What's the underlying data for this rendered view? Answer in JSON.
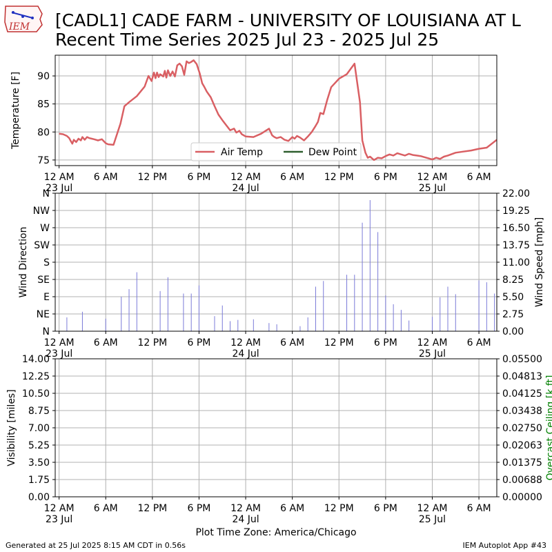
{
  "header": {
    "title_line1": "[CADL1] CADE FARM - UNIVERSITY OF LOUISIANA AT L",
    "title_line2": "Recent Time Series 2025 Jul 23 - 2025 Jul 25",
    "logo_text": "IEM"
  },
  "footer": {
    "generated": "Generated at 25 Jul 2025 8:15 AM CDT in 0.56s",
    "app": "IEM Autoplot App #43"
  },
  "colors": {
    "air_temp": "#d95f63",
    "dew_point": "#2e5e2e",
    "wind_bar": "#7a7ad8",
    "grid": "#b0b0b0",
    "ceiling_label": "#008000"
  },
  "chart_data": [
    {
      "id": "temperature",
      "type": "line",
      "xlabel": "",
      "ylabel": "Temperature [F]",
      "ylim": [
        74,
        93.7
      ],
      "yticks": [
        75,
        80,
        85,
        90
      ],
      "xlim_hours": [
        -0.5,
        56.3
      ],
      "grid": true,
      "legend_placement": "lower center",
      "legend": [
        "Air Temp",
        "Dew Point"
      ],
      "series": [
        {
          "name": "Air Temp",
          "x_hours": [
            0,
            0.5,
            1,
            1.3,
            1.5,
            1.7,
            1.9,
            2.2,
            2.5,
            2.8,
            3,
            3.3,
            3.6,
            3.9,
            4.2,
            4.5,
            5,
            5.5,
            6,
            6.3,
            7,
            7.9,
            8.4,
            9,
            10,
            11,
            11.5,
            11.9,
            12.2,
            12.4,
            12.6,
            12.8,
            13,
            13.2,
            13.4,
            13.6,
            13.8,
            14,
            14.3,
            14.6,
            14.9,
            15.2,
            15.5,
            15.8,
            16.1,
            16.4,
            16.7,
            17,
            17.3,
            17.7,
            18.1,
            18.4,
            18.7,
            19,
            19.5,
            20,
            20.5,
            21,
            22,
            22.5,
            22.8,
            23.2,
            23.5,
            24,
            25,
            26,
            27,
            27.4,
            27.7,
            28,
            28.5,
            29,
            29.5,
            30,
            30.3,
            30.6,
            31,
            31.5,
            32,
            32.5,
            33,
            33.3,
            33.6,
            34,
            34.5,
            35,
            36,
            37,
            38,
            38.7,
            39,
            39.4,
            39.7,
            40,
            40.5,
            41,
            41.5,
            42,
            42.5,
            43,
            43.5,
            44,
            44.5,
            45,
            45.5,
            46,
            46.5,
            47,
            48,
            48.5,
            49,
            49.5,
            50,
            51,
            52,
            53,
            54,
            55,
            56.3
          ],
          "values": [
            79.7,
            79.6,
            79.3,
            78.9,
            78.4,
            77.9,
            78.6,
            78.2,
            78.8,
            78.5,
            79.1,
            78.6,
            79.1,
            78.9,
            78.8,
            78.7,
            78.5,
            78.7,
            78,
            77.8,
            77.7,
            81.5,
            84.6,
            85.3,
            86.4,
            88.1,
            90,
            89.1,
            90.6,
            89.6,
            90.6,
            89.8,
            90.3,
            90.1,
            89.9,
            90.9,
            89.7,
            91,
            90,
            90.8,
            89.9,
            91.9,
            92.2,
            91.7,
            90.2,
            92.6,
            92.3,
            92.5,
            92.8,
            92.1,
            90.4,
            88.7,
            88,
            87.2,
            86.2,
            84.6,
            83.1,
            82.1,
            80.3,
            80.6,
            79.9,
            80.2,
            79.6,
            79.2,
            79.1,
            79.7,
            80.6,
            79.4,
            79.1,
            78.9,
            79.1,
            78.6,
            78.4,
            79.1,
            78.8,
            79.3,
            79,
            78.5,
            79.2,
            80,
            81.1,
            81.8,
            83.4,
            83.2,
            85.8,
            88,
            89.5,
            90.3,
            92.2,
            85.3,
            78.5,
            76.3,
            75.4,
            75.6,
            75,
            75.4,
            75.3,
            75.7,
            76,
            75.8,
            76.2,
            76,
            75.8,
            76.1,
            75.9,
            75.8,
            75.7,
            75.5,
            75.1,
            75.4,
            75.2,
            75.6,
            75.8,
            76.3,
            76.5,
            76.7,
            77,
            77.2,
            78.6
          ]
        },
        {
          "name": "Dew Point",
          "x_hours": [],
          "values": []
        }
      ]
    },
    {
      "id": "wind",
      "type": "bar",
      "xlabel": "",
      "ylabel": "Wind Direction",
      "ylabel_right": "Wind Speed [mph]",
      "ylim": [
        0,
        22
      ],
      "direction_ticks": [
        "N",
        "NE",
        "E",
        "SE",
        "S",
        "SW",
        "W",
        "NW",
        "N"
      ],
      "speed_ticks": [
        "0.00",
        "2.75",
        "5.50",
        "8.25",
        "11.00",
        "13.75",
        "16.50",
        "19.25",
        "22.00"
      ],
      "xlim_hours": [
        -0.5,
        56.3
      ],
      "grid": true,
      "series": [
        {
          "name": "",
          "x_hours": [
            1,
            3,
            6,
            8,
            9,
            10,
            13,
            14,
            16,
            17,
            18,
            20,
            21,
            22,
            23,
            25,
            27,
            28,
            31,
            32,
            33,
            34,
            37,
            38,
            39,
            40,
            41,
            42,
            43,
            44,
            45,
            48,
            49,
            50,
            51,
            54,
            55,
            56
          ],
          "values": [
            2.2,
            3.1,
            2.0,
            5.5,
            6.7,
            9.4,
            6.4,
            8.6,
            6.0,
            6.0,
            7.3,
            2.4,
            4.1,
            1.6,
            1.8,
            1.9,
            1.3,
            1.1,
            0.8,
            2.2,
            7.1,
            8.0,
            9.0,
            9.0,
            17.3,
            20.9,
            15.8,
            5.7,
            4.3,
            3.4,
            1.7,
            2.3,
            5.4,
            7.1,
            5.9,
            8.1,
            7.8,
            6.0
          ]
        }
      ]
    },
    {
      "id": "visibility",
      "type": "line",
      "xlabel": "Plot Time Zone: America/Chicago",
      "ylabel": "Visibility [miles]",
      "ylabel_right": "Overcast Ceiling [k ft]",
      "ylim": [
        0,
        14
      ],
      "yticks": [
        "0.00",
        "1.75",
        "3.50",
        "5.25",
        "7.00",
        "8.75",
        "10.50",
        "12.25",
        "14.00"
      ],
      "ylim_right": [
        0,
        0.055
      ],
      "yticks_right": [
        "0.00000",
        "0.00688",
        "0.01375",
        "0.02063",
        "0.02750",
        "0.03438",
        "0.04125",
        "0.04813",
        "0.05500"
      ],
      "xlim_hours": [
        -0.5,
        56.3
      ],
      "grid": true,
      "series": []
    }
  ],
  "x_axis": {
    "tick_hours": [
      0,
      6,
      12,
      18,
      24,
      30,
      36,
      42,
      48,
      54
    ],
    "tick_labels": [
      "12 AM",
      "6 AM",
      "12 PM",
      "6 PM",
      "12 AM",
      "6 AM",
      "12 PM",
      "6 PM",
      "12 AM",
      "6 AM"
    ],
    "date_labels": [
      {
        "hour": 0,
        "label": "23 Jul"
      },
      {
        "hour": 24,
        "label": "24 Jul"
      },
      {
        "hour": 48,
        "label": "25 Jul"
      }
    ]
  }
}
